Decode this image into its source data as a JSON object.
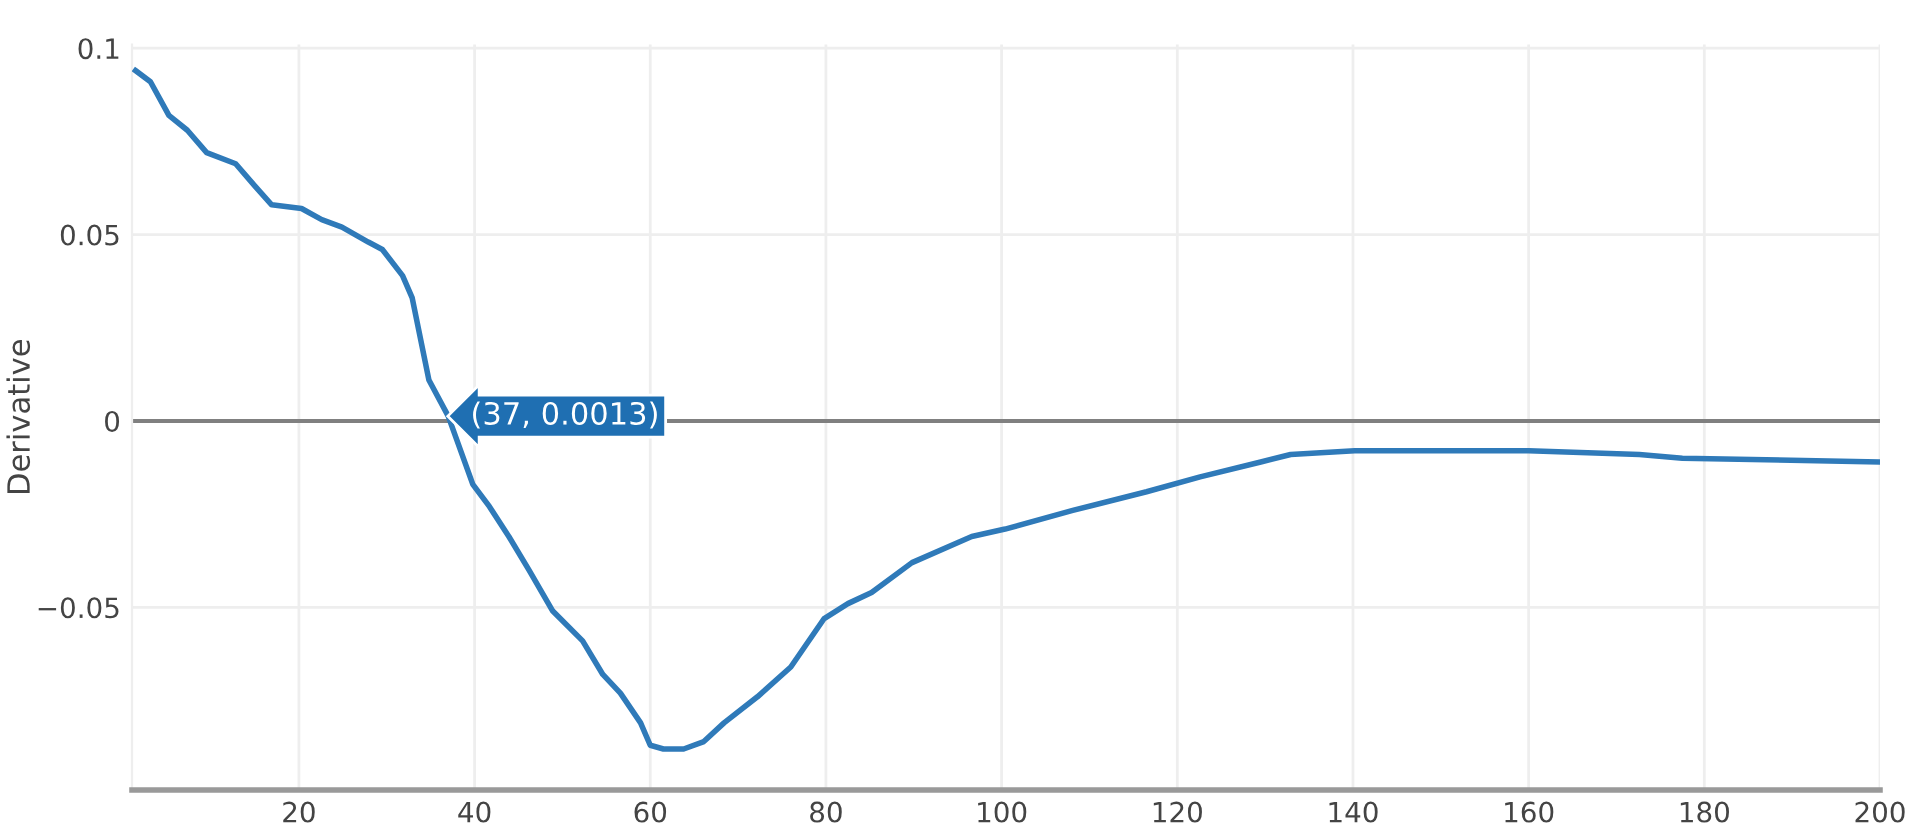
{
  "chart_data": {
    "type": "line",
    "ylabel": "Derivative",
    "x": [
      1.4,
      3.1,
      5.2,
      7.3,
      9.5,
      12.8,
      15,
      16.9,
      20.3,
      22.6,
      24.9,
      27.9,
      29.5,
      31.8,
      32.9,
      34.8,
      37,
      39.8,
      41.7,
      43.9,
      46.2,
      48.9,
      52.3,
      54.6,
      56.6,
      58.9,
      60,
      61.5,
      63.8,
      66.1,
      68.4,
      72.2,
      76,
      79.8,
      82.5,
      85.2,
      89.8,
      96.6,
      100.4,
      108.1,
      116.5,
      122.6,
      129.5,
      132.9,
      140.2,
      160,
      172.6,
      177.5,
      200
    ],
    "series": [
      {
        "color": "#2f7ab9",
        "values": [
          0.094,
          0.091,
          0.082,
          0.078,
          0.072,
          0.069,
          0.063,
          0.058,
          0.057,
          0.054,
          0.052,
          0.048,
          0.046,
          0.039,
          0.033,
          0.011,
          0.0013,
          -0.017,
          -0.023,
          -0.031,
          -0.04,
          -0.051,
          -0.059,
          -0.068,
          -0.073,
          -0.081,
          -0.087,
          -0.088,
          -0.088,
          -0.086,
          -0.081,
          -0.074,
          -0.066,
          -0.053,
          -0.049,
          -0.046,
          -0.038,
          -0.031,
          -0.029,
          -0.024,
          -0.019,
          -0.015,
          -0.011,
          -0.009,
          -0.008,
          -0.008,
          -0.009,
          -0.01,
          -0.011
        ]
      }
    ],
    "xlim": [
      1,
      200
    ],
    "ylim": [
      -0.099,
      0.101
    ],
    "xticks": [
      20,
      40,
      60,
      80,
      100,
      120,
      140,
      160,
      180,
      200
    ],
    "yticks": [
      {
        "value": -0.05,
        "label": "−0.05"
      },
      0,
      0.05,
      0.1
    ],
    "ref_lines": [
      {
        "axis": "y",
        "value": 0,
        "color": "#808080"
      }
    ],
    "annotations": [
      {
        "text": "(37, 0.0013)",
        "x": 37,
        "y": 0.0013
      }
    ],
    "grid": true,
    "legend": false,
    "marker": "none",
    "line_style": "solid"
  }
}
